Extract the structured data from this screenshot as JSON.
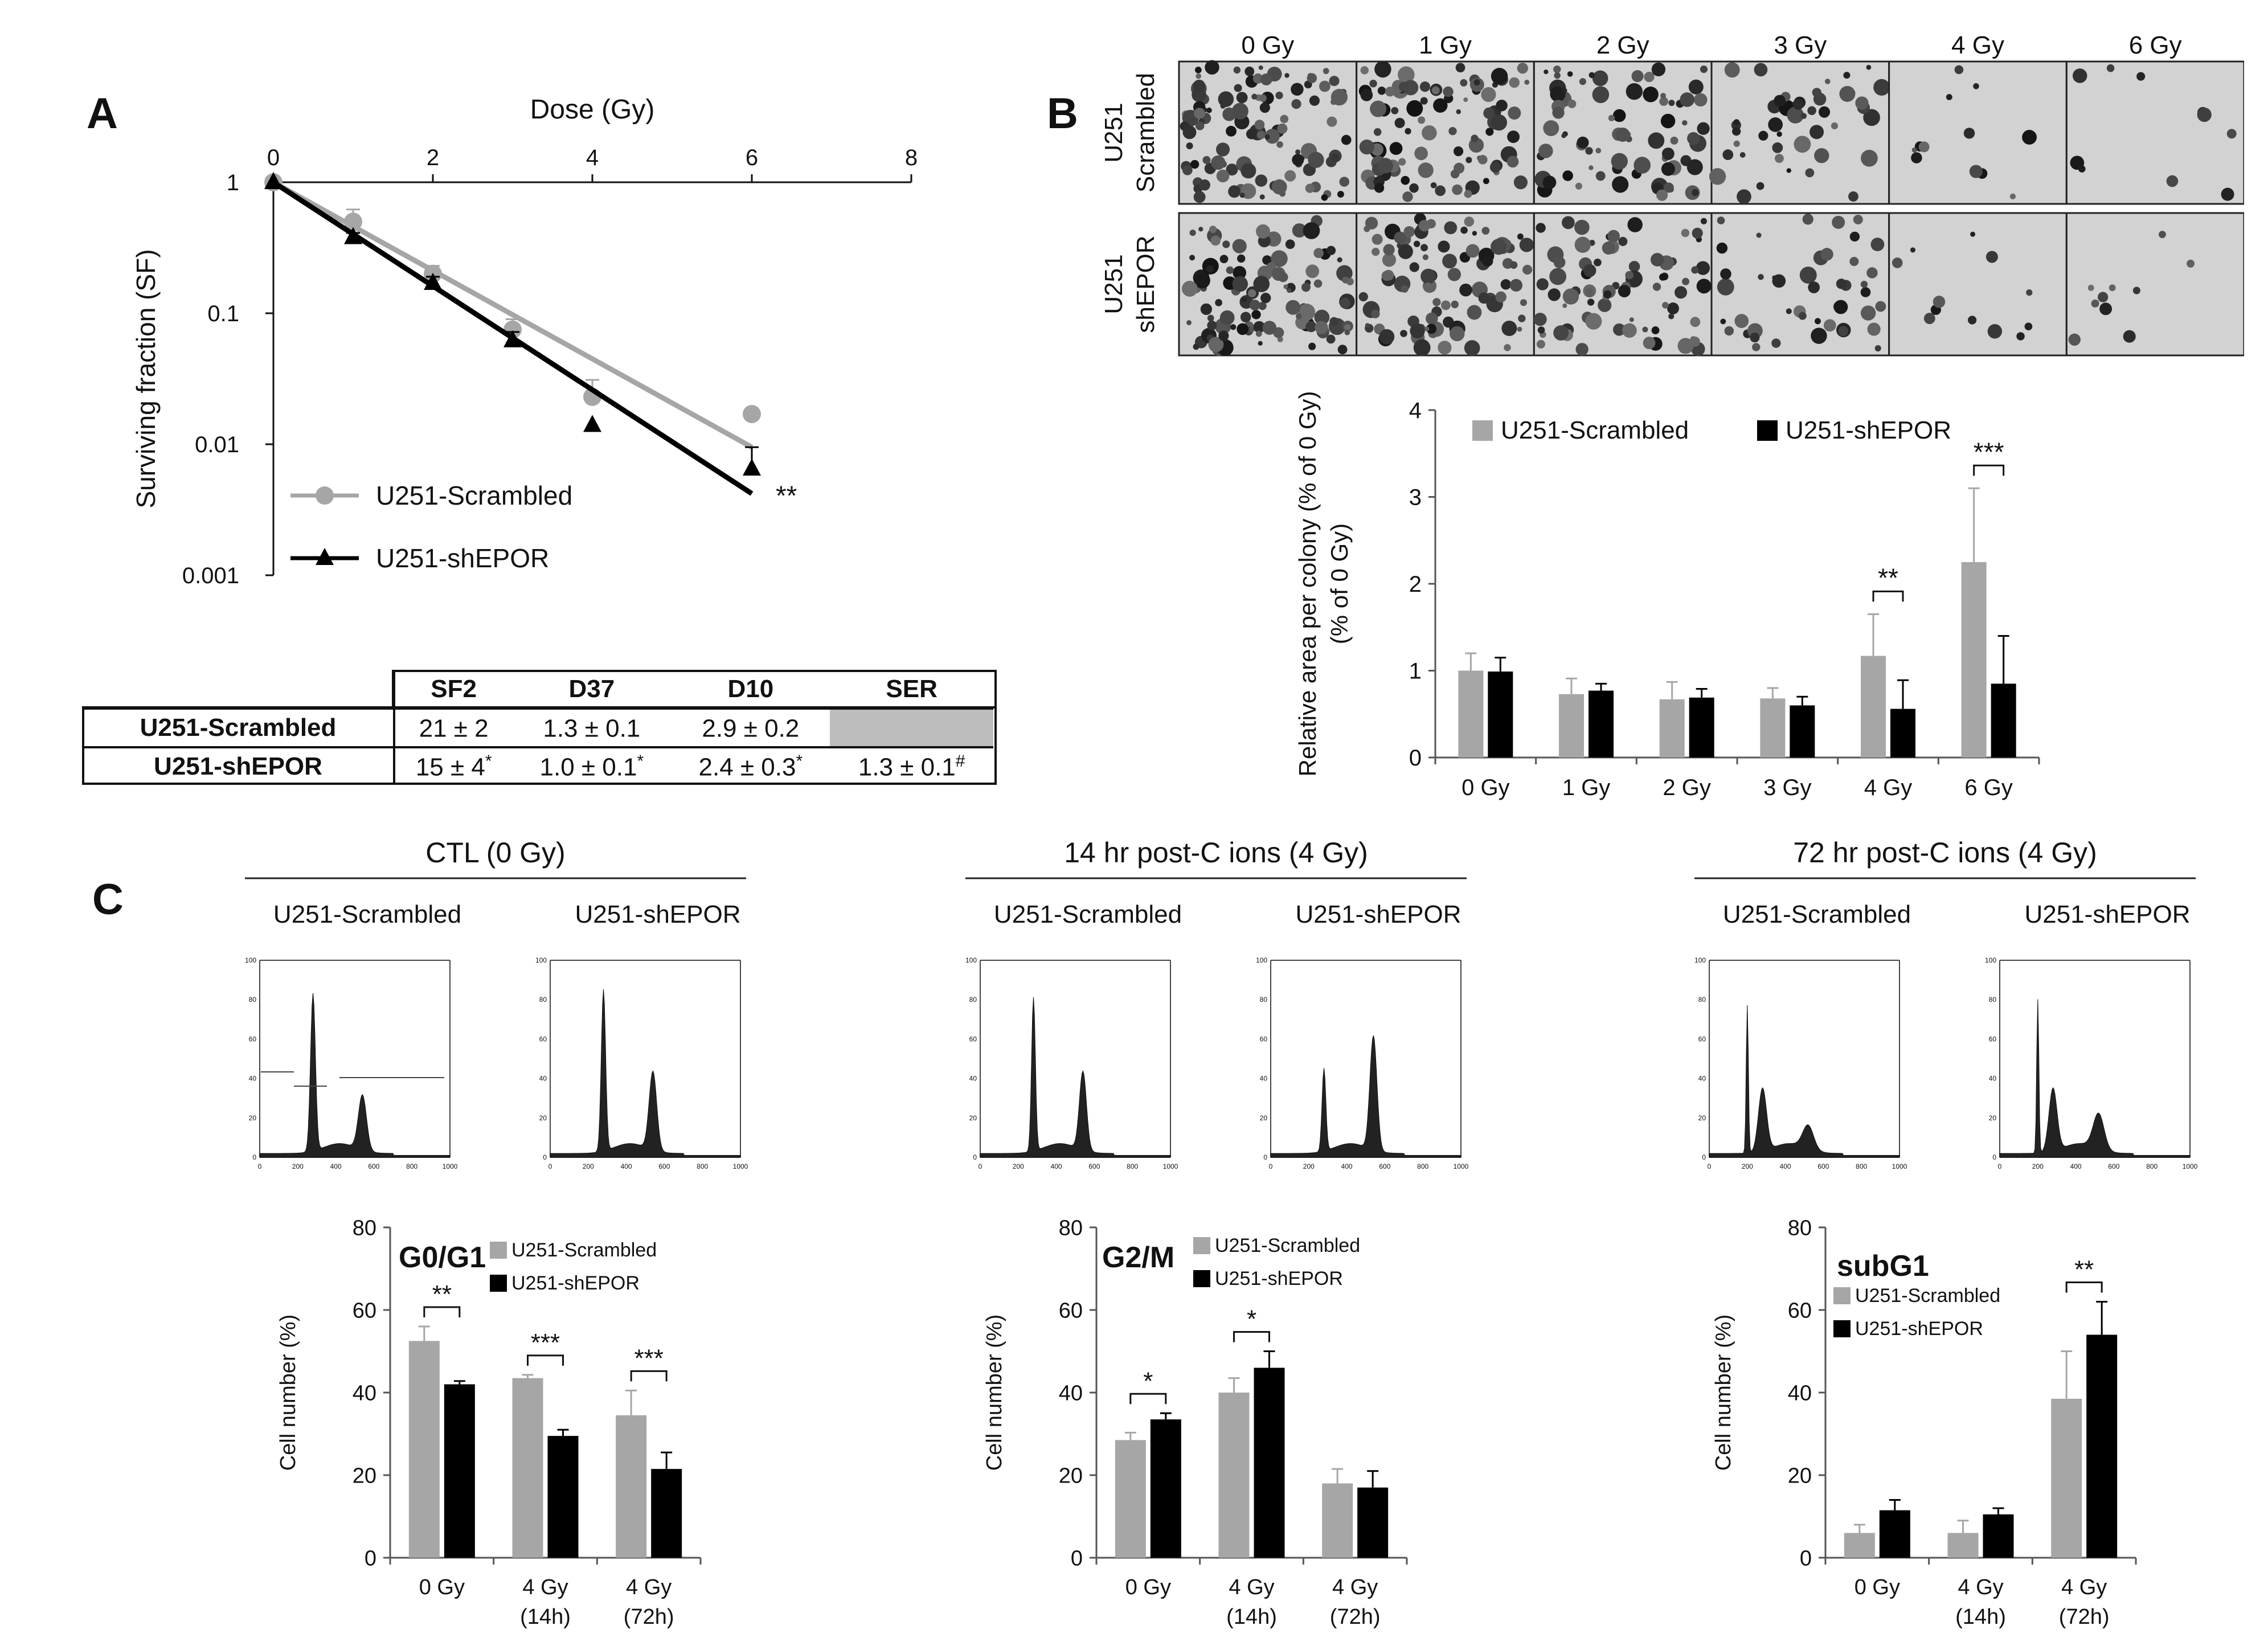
{
  "panels": {
    "a": "A",
    "b": "B",
    "c": "C"
  },
  "survival_plot": {
    "title": "Dose (Gy)",
    "ylabel": "Surviving fraction (SF)",
    "xticks": [
      "0",
      "2",
      "4",
      "6",
      "8"
    ],
    "yticks": [
      "1",
      "0.1",
      "0.01",
      "0.001"
    ],
    "significance": "**",
    "legend": [
      "U251-Scrambled",
      "U251-shEPOR"
    ],
    "colors": {
      "scrambled": "#a6a6a6",
      "shepor": "#000000"
    }
  },
  "table": {
    "headers": [
      "SF2",
      "D37",
      "D10",
      "SER"
    ],
    "rows": [
      {
        "label": "U251-Scrambled",
        "sf2": "21 ± 2",
        "d37": "1.3 ± 0.1",
        "d10": "2.9 ± 0.2",
        "ser": "",
        "sf2_mark": "",
        "d37_mark": "",
        "d10_mark": "",
        "ser_mark": ""
      },
      {
        "label": "U251-shEPOR",
        "sf2": "15 ± 4",
        "d37": "1.0 ± 0.1",
        "d10": "2.4 ± 0.3",
        "ser": "1.3 ± 0.1",
        "sf2_mark": "*",
        "d37_mark": "*",
        "d10_mark": "*",
        "ser_mark": "#"
      }
    ]
  },
  "plates": {
    "columns": [
      "0 Gy",
      "1 Gy",
      "2 Gy",
      "3 Gy",
      "4 Gy",
      "6 Gy"
    ],
    "rows": [
      {
        "line1": "U251",
        "line2": "Scrambled"
      },
      {
        "line1": "U251",
        "line2": "shEPOR"
      }
    ]
  },
  "cell_cycle": {
    "groups": [
      {
        "title": "CTL (0 Gy)",
        "left": "U251-Scrambled",
        "right": "U251-shEPOR"
      },
      {
        "title": "14 hr post-C ions (4 Gy)",
        "left": "U251-Scrambled",
        "right": "U251-shEPOR"
      },
      {
        "title": "72 hr post-C ions (4 Gy)",
        "left": "U251-Scrambled",
        "right": "U251-shEPOR"
      }
    ],
    "hist_yticks": [
      "100",
      "80",
      "60",
      "40",
      "20",
      "0"
    ],
    "hist_xticks": [
      "0",
      "200",
      "400",
      "600",
      "800",
      "1000"
    ]
  },
  "chart_data": [
    {
      "id": "survival",
      "type": "line",
      "title": "Dose (Gy)",
      "xlabel": "Dose (Gy)",
      "ylabel": "Surviving fraction (SF)",
      "xlim": [
        0,
        8
      ],
      "ylim": [
        0.001,
        1
      ],
      "yscale": "log",
      "legend": "bottom-left",
      "series": [
        {
          "name": "U251-Scrambled",
          "x": [
            0,
            1,
            2,
            3,
            4,
            6
          ],
          "y": [
            1,
            0.5,
            0.2,
            0.075,
            0.023,
            0.017
          ],
          "err": [
            0,
            0.12,
            0.03,
            0.015,
            0.008,
            0
          ],
          "fit": [
            [
              0,
              1
            ],
            [
              6,
              0.0095
            ]
          ]
        },
        {
          "name": "U251-shEPOR",
          "x": [
            0,
            1,
            2,
            3,
            4,
            6
          ],
          "y": [
            1,
            0.38,
            0.17,
            0.062,
            0.014,
            0.0065
          ],
          "err": [
            0,
            0.03,
            0.02,
            0.01,
            0,
            0.003
          ],
          "fit": [
            [
              0,
              1
            ],
            [
              6,
              0.0042
            ]
          ]
        }
      ]
    },
    {
      "id": "colony-area",
      "type": "bar",
      "title": "",
      "xlabel": "",
      "ylabel": "Relative area per colony (% of 0 Gy)",
      "ylim": [
        0,
        4
      ],
      "yticks": [
        0,
        1,
        2,
        3,
        4
      ],
      "legend": "top",
      "categories": [
        "0 Gy",
        "1 Gy",
        "2 Gy",
        "3 Gy",
        "4 Gy",
        "6 Gy"
      ],
      "series": [
        {
          "name": "U251-Scrambled",
          "values": [
            1.0,
            0.73,
            0.67,
            0.68,
            1.17,
            2.25
          ],
          "err": [
            0.2,
            0.18,
            0.2,
            0.12,
            0.48,
            0.85
          ]
        },
        {
          "name": "U251-shEPOR",
          "values": [
            0.99,
            0.77,
            0.69,
            0.6,
            0.56,
            0.85
          ],
          "err": [
            0.16,
            0.08,
            0.1,
            0.1,
            0.33,
            0.55
          ]
        }
      ],
      "annotations": [
        {
          "category": "4 Gy",
          "text": "**"
        },
        {
          "category": "6 Gy",
          "text": "***"
        }
      ]
    },
    {
      "id": "g0g1",
      "type": "bar",
      "title": "G0/G1",
      "xlabel": "",
      "ylabel": "Cell number (%)",
      "ylim": [
        0,
        80
      ],
      "yticks": [
        0,
        20,
        40,
        60,
        80
      ],
      "legend": "top-right",
      "categories": [
        [
          "0 Gy"
        ],
        [
          "4 Gy",
          "(14h)"
        ],
        [
          "4 Gy",
          "(72h)"
        ]
      ],
      "series": [
        {
          "name": "U251-Scrambled",
          "values": [
            52.5,
            43.5,
            34.5
          ],
          "err": [
            3.5,
            0.8,
            6
          ]
        },
        {
          "name": "U251-shEPOR",
          "values": [
            42,
            29.5,
            21.5
          ],
          "err": [
            0.8,
            1.5,
            4
          ]
        }
      ],
      "annotations": [
        {
          "category": 0,
          "text": "**"
        },
        {
          "category": 1,
          "text": "***"
        },
        {
          "category": 2,
          "text": "***"
        }
      ]
    },
    {
      "id": "g2m",
      "type": "bar",
      "title": "G2/M",
      "xlabel": "",
      "ylabel": "Cell number (%)",
      "ylim": [
        0,
        80
      ],
      "yticks": [
        0,
        20,
        40,
        60,
        80
      ],
      "legend": "top-right",
      "categories": [
        [
          "0 Gy"
        ],
        [
          "4 Gy",
          "(14h)"
        ],
        [
          "4 Gy",
          "(72h)"
        ]
      ],
      "series": [
        {
          "name": "U251-Scrambled",
          "values": [
            28.5,
            40,
            18
          ],
          "err": [
            1.8,
            3.5,
            3.5
          ]
        },
        {
          "name": "U251-shEPOR",
          "values": [
            33.5,
            46,
            17
          ],
          "err": [
            1.5,
            4,
            4
          ]
        }
      ],
      "annotations": [
        {
          "category": 0,
          "text": "*"
        },
        {
          "category": 1,
          "text": "*"
        }
      ]
    },
    {
      "id": "subg1",
      "type": "bar",
      "title": "subG1",
      "xlabel": "",
      "ylabel": "Cell number (%)",
      "ylim": [
        0,
        80
      ],
      "yticks": [
        0,
        20,
        40,
        60,
        80
      ],
      "legend": "top-left",
      "categories": [
        [
          "0 Gy"
        ],
        [
          "4 Gy",
          "(14h)"
        ],
        [
          "4 Gy",
          "(72h)"
        ]
      ],
      "series": [
        {
          "name": "U251-Scrambled",
          "values": [
            6,
            6,
            38.5
          ],
          "err": [
            2,
            3,
            11.5
          ]
        },
        {
          "name": "U251-shEPOR",
          "values": [
            11.5,
            10.5,
            54
          ],
          "err": [
            2.5,
            1.5,
            8
          ]
        }
      ],
      "annotations": [
        {
          "category": 2,
          "text": "**"
        }
      ]
    }
  ]
}
